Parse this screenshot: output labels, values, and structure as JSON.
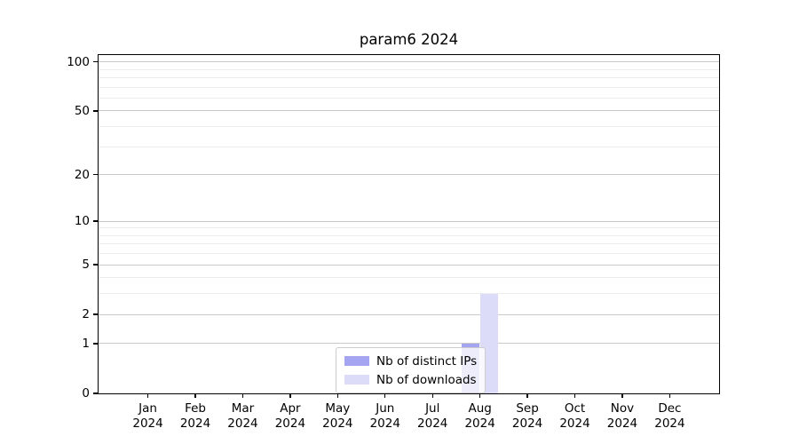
{
  "figure": {
    "title": "param6 2024"
  },
  "chart_data": {
    "type": "bar",
    "title": "param6 2024",
    "categories": [
      "Jan 2024",
      "Feb 2024",
      "Mar 2024",
      "Apr 2024",
      "May 2024",
      "Jun 2024",
      "Jul 2024",
      "Aug 2024",
      "Sep 2024",
      "Oct 2024",
      "Nov 2024",
      "Dec 2024"
    ],
    "series": [
      {
        "name": "Nb of distinct IPs",
        "color": "#a4a4f0",
        "values": [
          0,
          0,
          0,
          0,
          0,
          0,
          0,
          1,
          0,
          0,
          0,
          0
        ]
      },
      {
        "name": "Nb of downloads",
        "color": "#dcdcf8",
        "values": [
          0,
          0,
          0,
          0,
          0,
          0,
          0,
          3,
          0,
          0,
          0,
          0
        ]
      }
    ],
    "xlabel": "",
    "ylabel": "",
    "y_scale": "log10(1+x)",
    "ylim": [
      0,
      110
    ],
    "y_major_ticks": [
      0,
      1,
      2,
      5,
      10,
      20,
      50,
      100
    ],
    "y_minor_ticks": [
      3,
      4,
      6,
      7,
      8,
      9,
      30,
      40,
      60,
      70,
      80,
      90
    ],
    "grid": true,
    "legend_position": "lower center (inside plot)",
    "colors": {
      "major_grid": "#c9c9c9",
      "minor_grid": "#ececec",
      "spine": "#000000",
      "background": "#ffffff"
    }
  }
}
